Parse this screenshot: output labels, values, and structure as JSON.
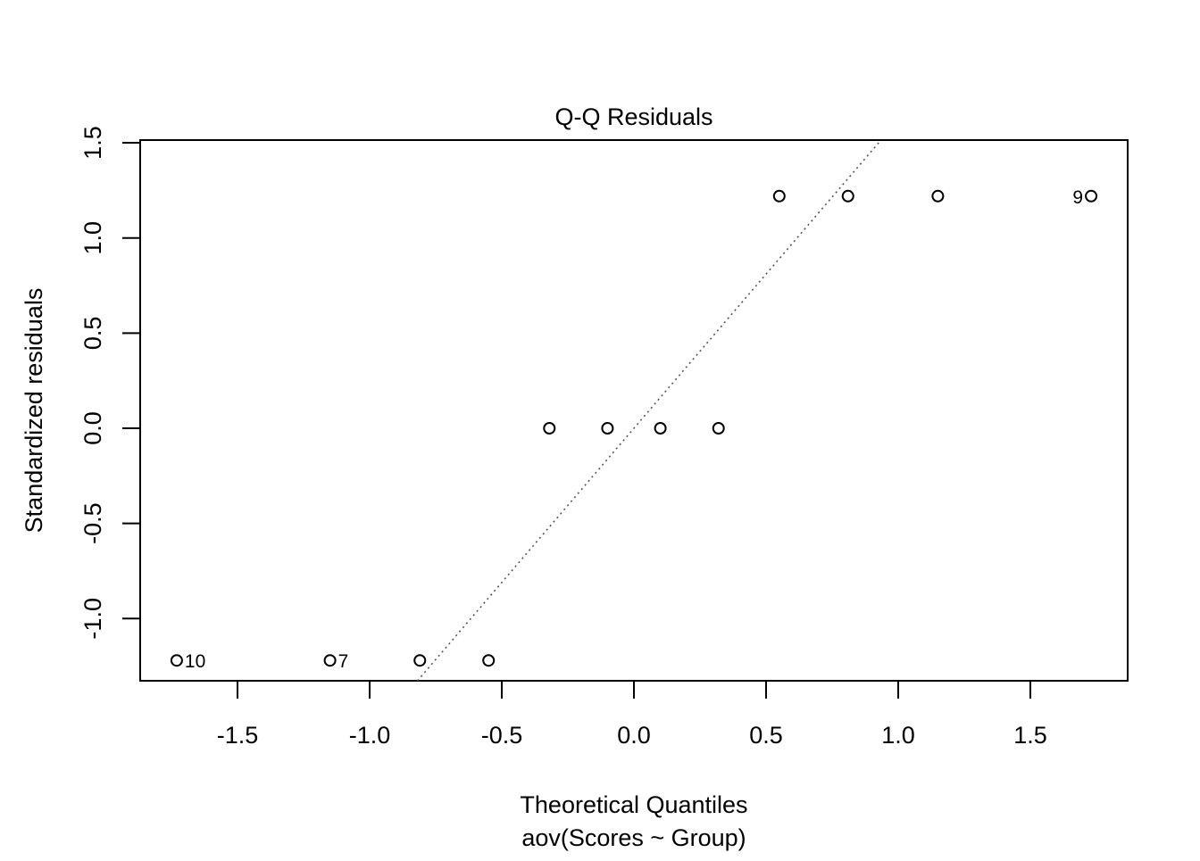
{
  "chart_data": {
    "type": "scatter",
    "title": "Q-Q Residuals",
    "xlabel": "Theoretical Quantiles",
    "subtitle": "aov(Scores ~ Group)",
    "ylabel": "Standardized residuals",
    "xlim": [
      -1.87,
      1.87
    ],
    "ylim": [
      -1.33,
      1.52
    ],
    "x_ticks": [
      "-1.5",
      "-1.0",
      "-0.5",
      "0.0",
      "0.5",
      "1.0",
      "1.5"
    ],
    "y_ticks": [
      "-1.0",
      "-0.5",
      "0.0",
      "0.5",
      "1.0",
      "1.5"
    ],
    "grid": false,
    "points": [
      {
        "x": -1.73,
        "y": -1.22,
        "label": "10"
      },
      {
        "x": -1.15,
        "y": -1.22,
        "label": "7"
      },
      {
        "x": -0.81,
        "y": -1.22,
        "label": ""
      },
      {
        "x": -0.55,
        "y": -1.22,
        "label": ""
      },
      {
        "x": -0.32,
        "y": 0.0,
        "label": ""
      },
      {
        "x": -0.1,
        "y": 0.0,
        "label": ""
      },
      {
        "x": 0.1,
        "y": 0.0,
        "label": ""
      },
      {
        "x": 0.32,
        "y": 0.0,
        "label": ""
      },
      {
        "x": 0.55,
        "y": 1.22,
        "label": ""
      },
      {
        "x": 0.81,
        "y": 1.22,
        "label": ""
      },
      {
        "x": 1.15,
        "y": 1.22,
        "label": ""
      },
      {
        "x": 1.73,
        "y": 1.22,
        "label": "9"
      }
    ],
    "reference_line": {
      "style": "dotted",
      "color": "#555555",
      "slope": 1.62,
      "intercept": 0.0
    }
  }
}
